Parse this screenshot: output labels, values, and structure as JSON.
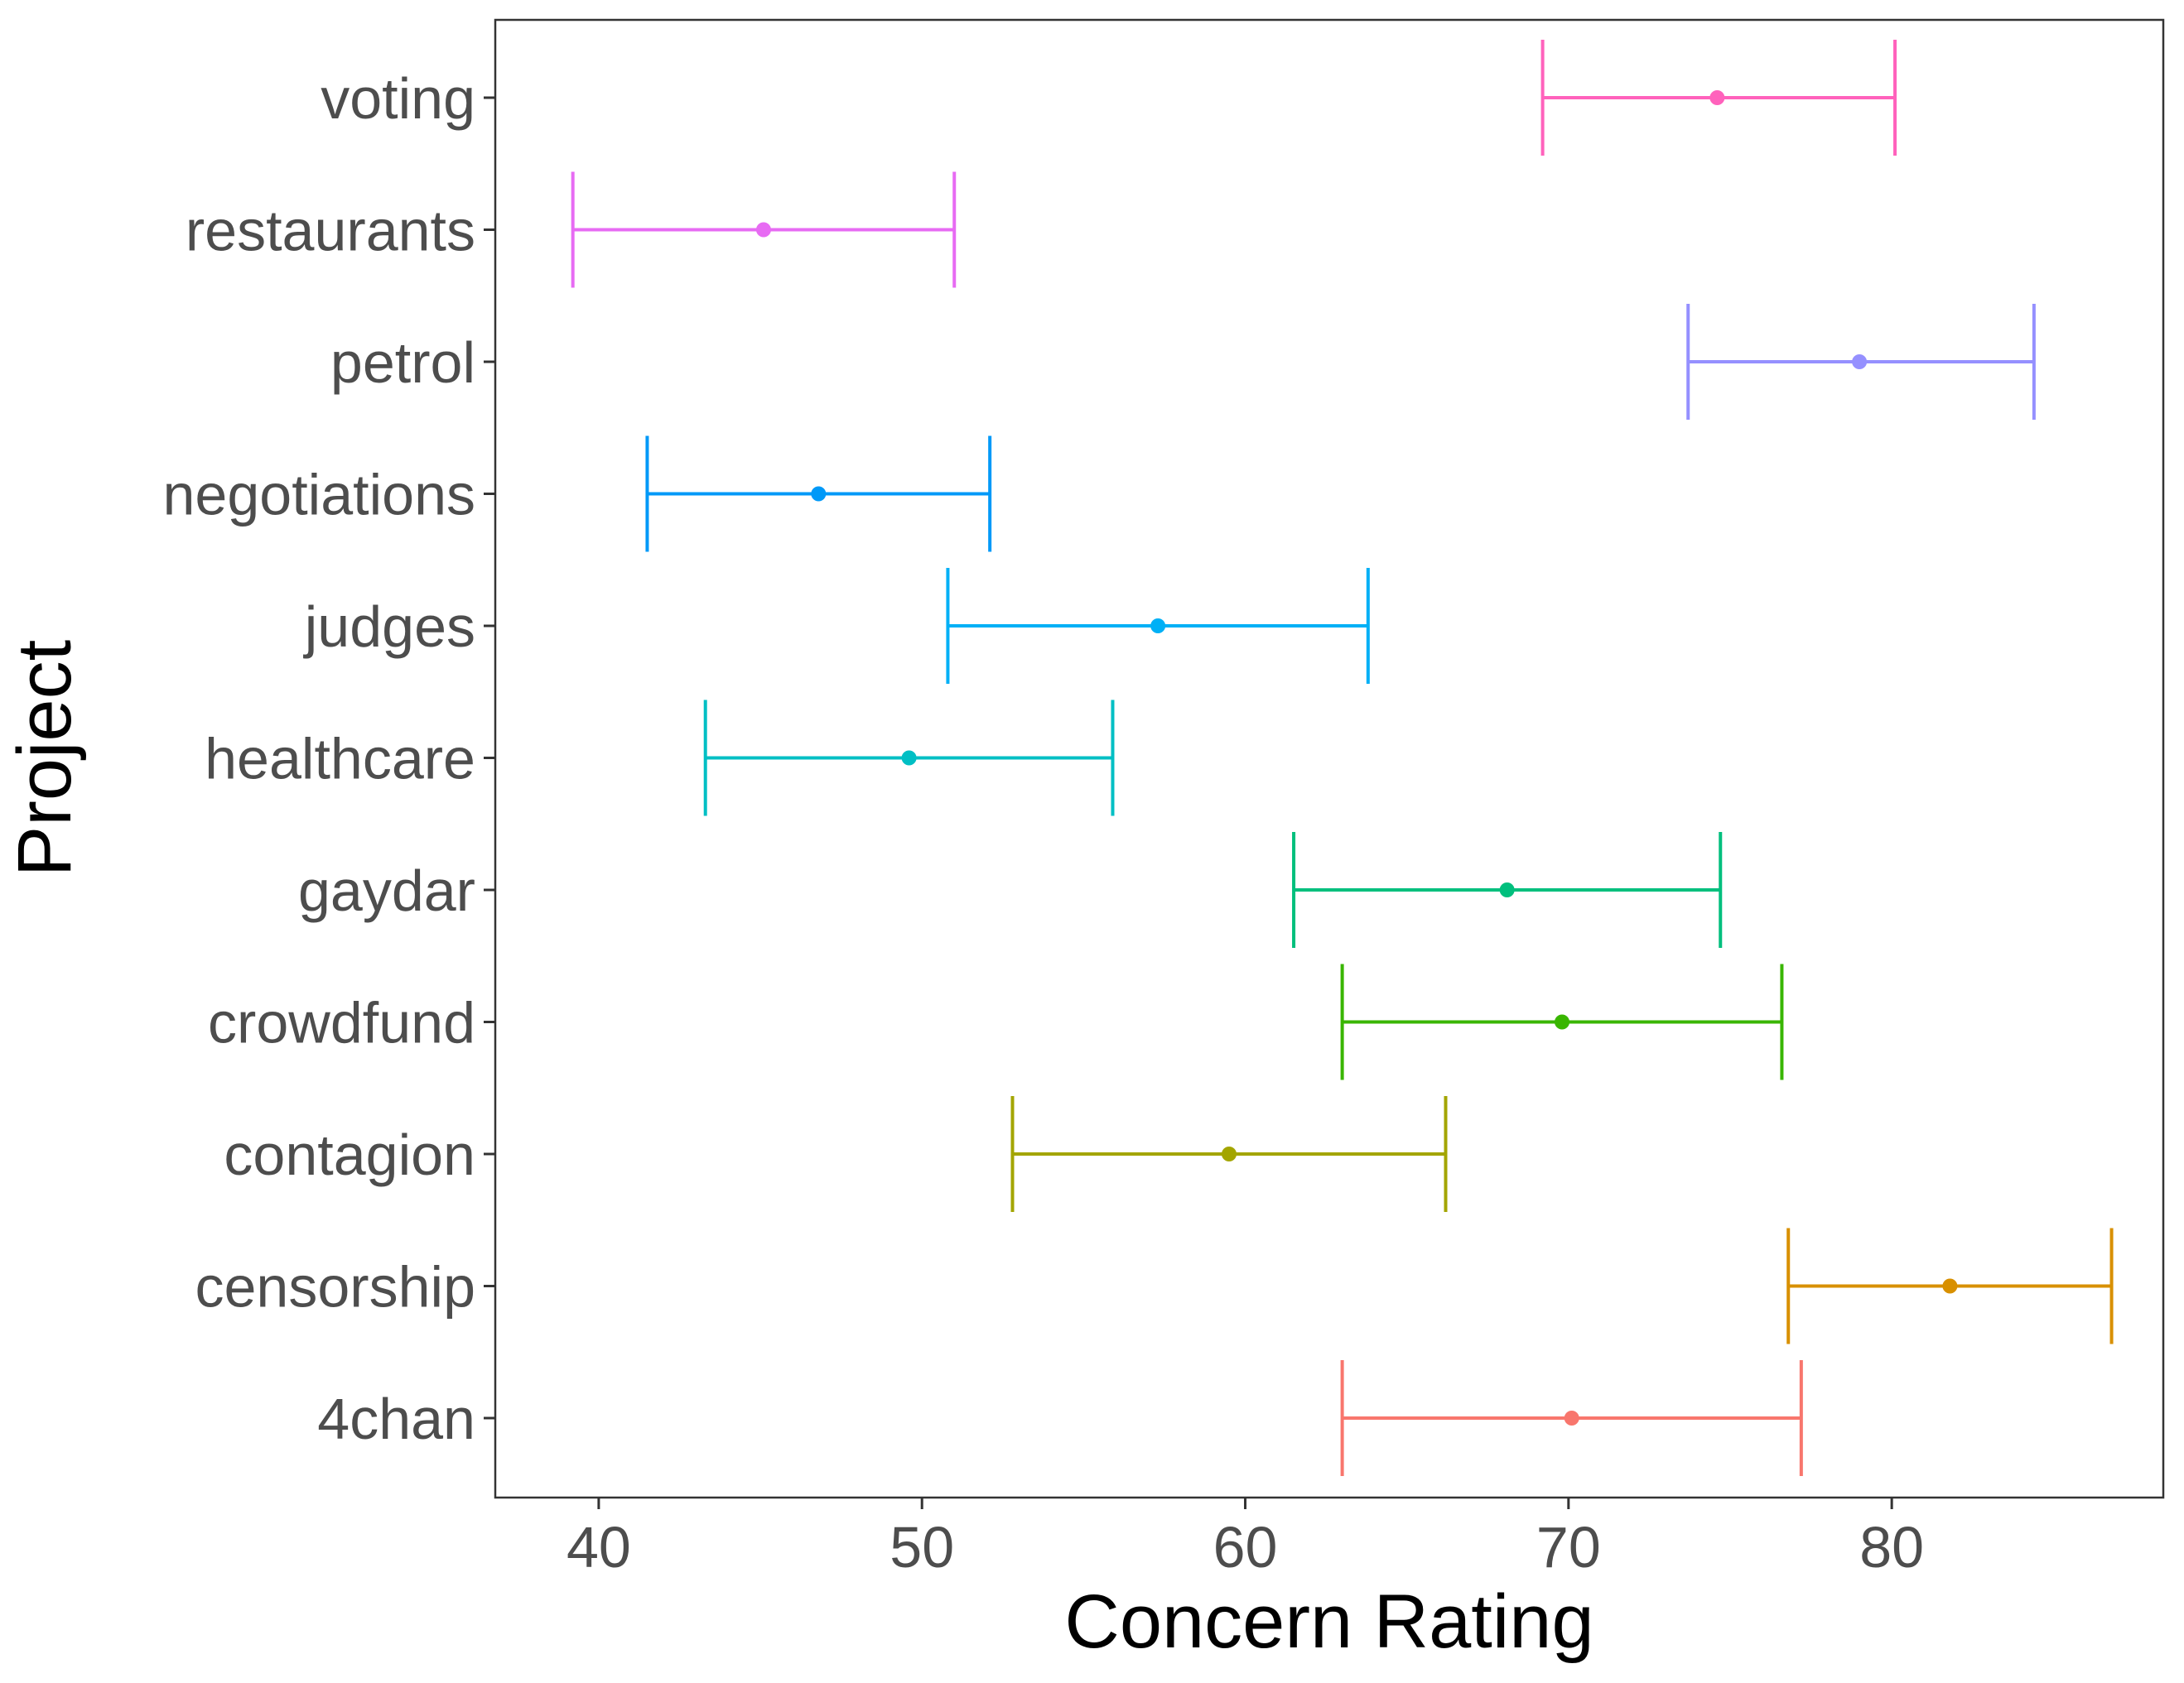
{
  "chart_data": {
    "type": "errorbar",
    "xlabel": "Concern Rating",
    "ylabel": "Project",
    "xlim": [
      36.8,
      88.4
    ],
    "xticks": [
      40,
      50,
      60,
      70,
      80
    ],
    "grid": false,
    "legend": "none",
    "categories": [
      "4chan",
      "censorship",
      "contagion",
      "crowdfund",
      "gaydar",
      "healthcare",
      "judges",
      "negotiations",
      "petrol",
      "restaurants",
      "voting"
    ],
    "series": [
      {
        "category": "4chan",
        "mean": 70.1,
        "low": 63.0,
        "high": 77.2,
        "color": "#f8766d"
      },
      {
        "category": "censorship",
        "mean": 81.8,
        "low": 76.8,
        "high": 86.8,
        "color": "#d89000"
      },
      {
        "category": "contagion",
        "mean": 59.5,
        "low": 52.8,
        "high": 66.2,
        "color": "#a3a500"
      },
      {
        "category": "crowdfund",
        "mean": 69.8,
        "low": 63.0,
        "high": 76.6,
        "color": "#39b600"
      },
      {
        "category": "gaydar",
        "mean": 68.1,
        "low": 61.5,
        "high": 74.7,
        "color": "#00bf7d"
      },
      {
        "category": "healthcare",
        "mean": 49.6,
        "low": 43.3,
        "high": 55.9,
        "color": "#00bfc4"
      },
      {
        "category": "judges",
        "mean": 57.3,
        "low": 50.8,
        "high": 63.8,
        "color": "#00b0f6"
      },
      {
        "category": "negotiations",
        "mean": 46.8,
        "low": 41.5,
        "high": 52.1,
        "color": "#0099f8"
      },
      {
        "category": "petrol",
        "mean": 79.0,
        "low": 73.7,
        "high": 84.4,
        "color": "#9590ff"
      },
      {
        "category": "restaurants",
        "mean": 45.1,
        "low": 39.2,
        "high": 51.0,
        "color": "#e76bf3"
      },
      {
        "category": "voting",
        "mean": 74.6,
        "low": 69.2,
        "high": 80.1,
        "color": "#ff62bc"
      }
    ]
  }
}
